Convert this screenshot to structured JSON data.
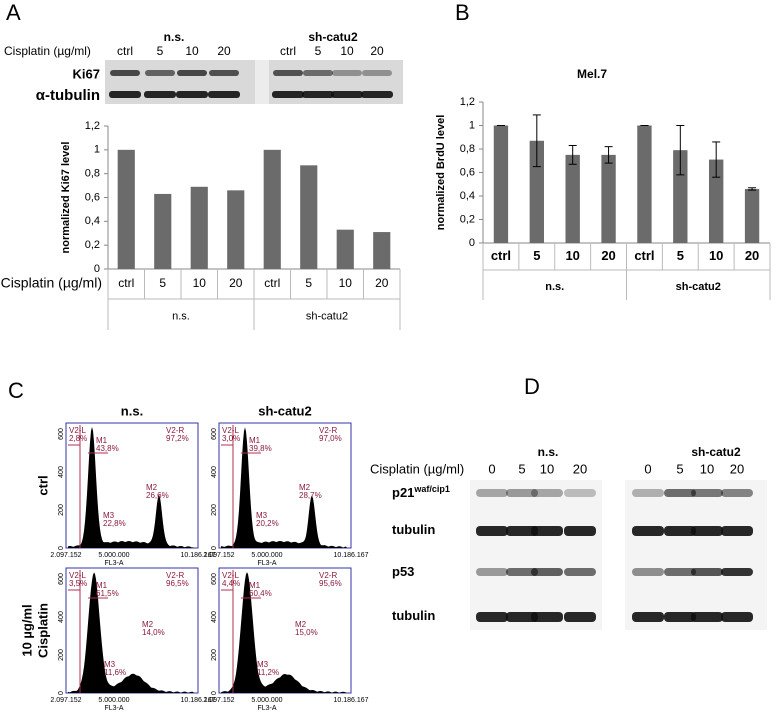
{
  "panel_labels": [
    "A",
    "B",
    "C",
    "D"
  ],
  "blot_a": {
    "groups": [
      "n.s.",
      "sh-catu2"
    ],
    "condition_label": "Cisplatin (µg/ml)",
    "lanes": [
      "ctrl",
      "5",
      "10",
      "20",
      "ctrl",
      "5",
      "10",
      "20"
    ],
    "rows": [
      "Ki67",
      "α-tubulin"
    ]
  },
  "chart_data": [
    {
      "type": "bar",
      "ylabel": "normalized Ki67 level",
      "category_label": "Cisplatin (µg/ml)",
      "categories": [
        "ctrl",
        "5",
        "10",
        "20",
        "ctrl",
        "5",
        "10",
        "20"
      ],
      "groups": [
        "n.s.",
        "sh-catu2"
      ],
      "values": [
        1,
        0.63,
        0.69,
        0.66,
        1,
        0.87,
        0.33,
        0.31
      ],
      "color": "#6b6b6b",
      "ylim": [
        0,
        1.2
      ],
      "yticks": [
        0,
        {
          "value": 0.2,
          "label": "0,2"
        },
        {
          "value": 0.4,
          "label": "0,4"
        },
        {
          "value": 0.6,
          "label": "0,6"
        },
        {
          "value": 0.8,
          "label": "0,8"
        },
        1,
        {
          "value": 1.2,
          "label": "1,2"
        }
      ]
    },
    {
      "type": "bar",
      "title": "Mel.7",
      "ylabel": "normalized BrdU level",
      "categories": [
        "ctrl",
        "5",
        "10",
        "20",
        "ctrl",
        "5",
        "10",
        "20"
      ],
      "groups": [
        "n.s.",
        "sh-catu2"
      ],
      "values": [
        1,
        0.87,
        0.75,
        0.75,
        1,
        0.79,
        0.71,
        0.46
      ],
      "errors": [
        0,
        0.22,
        0.08,
        0.07,
        0,
        0.21,
        0.15,
        0.01
      ],
      "color": "#6b6b6b",
      "ylim": [
        0,
        1.2
      ],
      "yticks": [
        0,
        {
          "value": 0.2,
          "label": "0,2"
        },
        {
          "value": 0.4,
          "label": "0,4"
        },
        {
          "value": 0.6,
          "label": "0,6"
        },
        {
          "value": 0.8,
          "label": "0,8"
        },
        1,
        {
          "value": 1.2,
          "label": "1,2"
        }
      ]
    }
  ],
  "flow": {
    "columns": [
      "n.s.",
      "sh-catu2"
    ],
    "rows": [
      {
        "lines": [
          "ctrl"
        ]
      },
      {
        "lines": [
          "10 µg/ml",
          "Cisplatin"
        ]
      }
    ],
    "gate_names": [
      "V2-L",
      "M1",
      "V2-R",
      "M2",
      "M3"
    ],
    "plots": [
      {
        "gates": [
          "2,8%",
          "43,8%",
          "97,2%",
          "26,6%",
          "22,8%"
        ]
      },
      {
        "gates": [
          "3,0%",
          "39,8%",
          "97,0%",
          "28,7%",
          "20,2%"
        ]
      },
      {
        "gates": [
          "3,5%",
          "61,5%",
          "96,5%",
          "14,0%",
          "11,6%"
        ]
      },
      {
        "gates": [
          "4,4%",
          "60,4%",
          "95,6%",
          "15,0%",
          "11,2%"
        ]
      }
    ],
    "yticks": [
      "0",
      "200",
      "400",
      "600"
    ],
    "xticks": [
      "2.097.152",
      "5.000.000",
      "10.186.167"
    ],
    "xlabel": "FL3-A"
  },
  "blot_d": {
    "groups": [
      "n.s.",
      "sh-catu2"
    ],
    "condition_label": "Cisplatin (µg/ml)",
    "lanes": [
      "0",
      "5",
      "10",
      "20",
      "0",
      "5",
      "10",
      "20"
    ],
    "rows": [
      {
        "label": "p21",
        "sup": "waf/cip1"
      },
      {
        "label": "tubulin"
      },
      {
        "label": "p53"
      },
      {
        "label": "tubulin"
      }
    ]
  }
}
